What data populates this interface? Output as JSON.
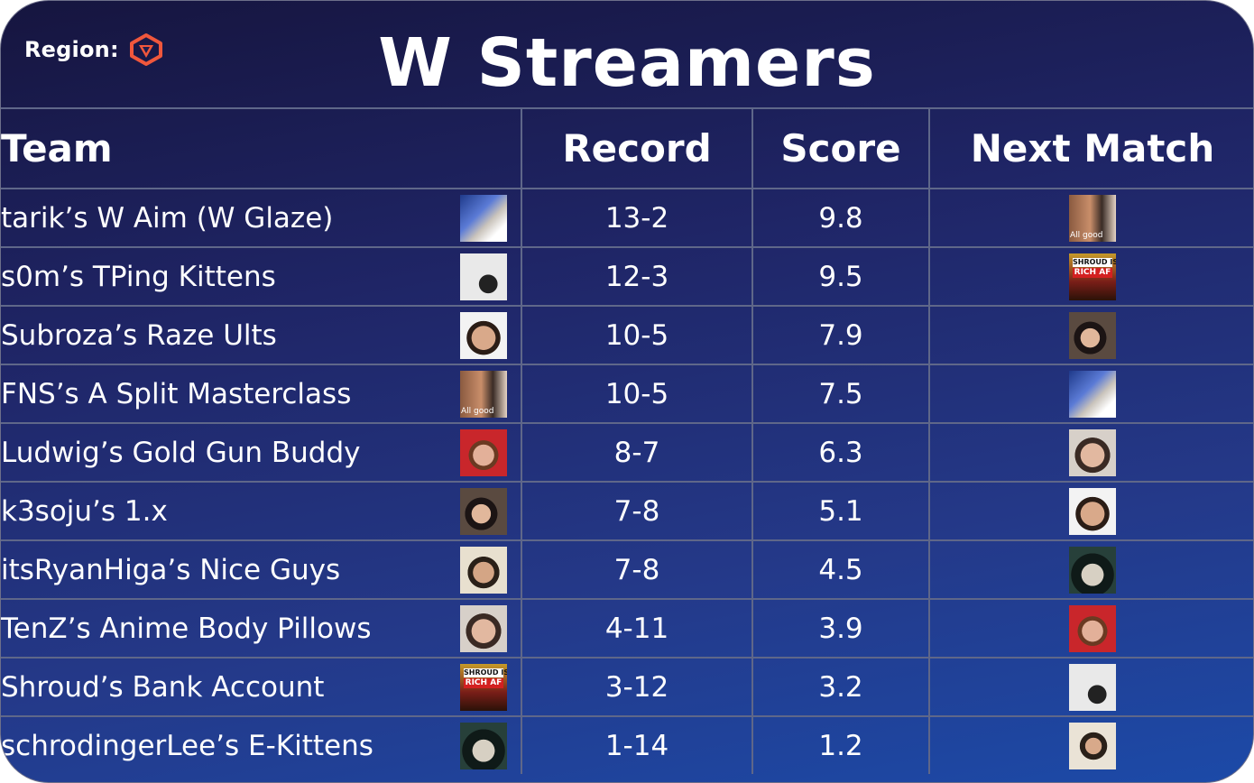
{
  "header": {
    "region_label": "Region:",
    "region_icon": "valorant-logo-icon",
    "title": "W Streamers"
  },
  "table": {
    "columns": [
      "Team",
      "Record",
      "Score",
      "Next Match"
    ],
    "rows": [
      {
        "team": "tarik’s W Aim (W Glaze)",
        "record": "13-2",
        "score": "9.8",
        "next_caption": "All good"
      },
      {
        "team": "s0m’s TPing Kittens",
        "record": "12-3",
        "score": "9.5",
        "next_sign_top": "SHROUD IS",
        "next_sign_bottom": "RICH AF"
      },
      {
        "team": "Subroza’s Raze Ults",
        "record": "10-5",
        "score": "7.9"
      },
      {
        "team": "FNS’s A Split Masterclass",
        "record": "10-5",
        "score": "7.5",
        "team_caption": "All good"
      },
      {
        "team": "Ludwig’s Gold Gun Buddy",
        "record": "8-7",
        "score": "6.3"
      },
      {
        "team": "k3soju’s 1.x",
        "record": "7-8",
        "score": "5.1"
      },
      {
        "team": "itsRyanHiga’s Nice Guys",
        "record": "7-8",
        "score": "4.5"
      },
      {
        "team": "TenZ’s Anime Body Pillows",
        "record": "4-11",
        "score": "3.9"
      },
      {
        "team": "Shroud’s Bank Account",
        "record": "3-12",
        "score": "3.2",
        "team_sign_top": "SHROUD IS",
        "team_sign_bottom": "RICH AF"
      },
      {
        "team": "schrodingerLee’s E-Kittens",
        "record": "1-14",
        "score": "1.2"
      }
    ]
  },
  "colors": {
    "accent_logo": "#f0573c",
    "grid_line": "#5f6789",
    "text": "#ffffff"
  }
}
